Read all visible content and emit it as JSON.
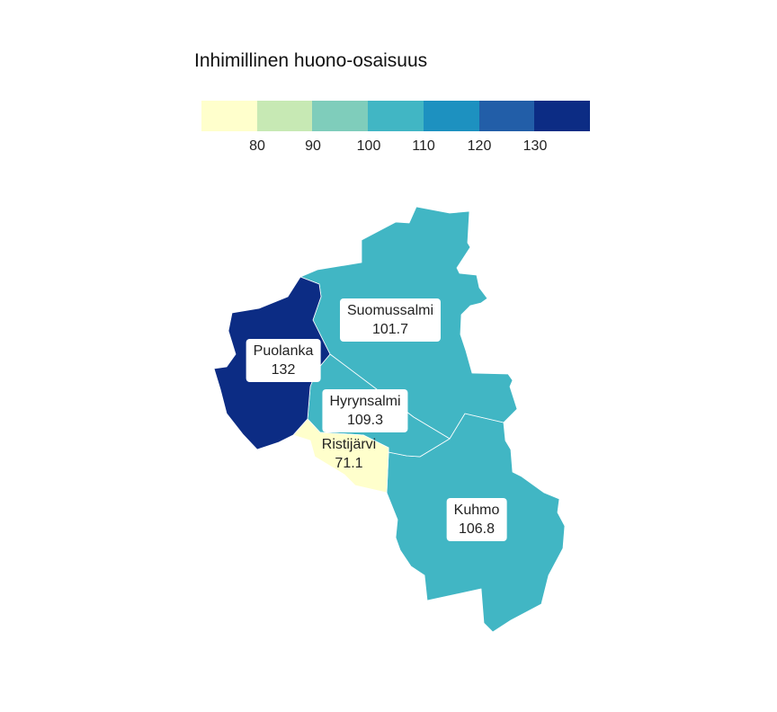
{
  "legend": {
    "title": "Inhimillinen huono-osaisuus",
    "colors": [
      "#ffffcc",
      "#c7e9b4",
      "#7fcdbb",
      "#41b6c4",
      "#1d91c0",
      "#225ea8",
      "#0c2c84"
    ],
    "breaks": [
      70,
      80,
      90,
      100,
      110,
      120,
      130,
      140
    ],
    "ticks": [
      "80",
      "90",
      "100",
      "110",
      "120",
      "130"
    ]
  },
  "regions": [
    {
      "name": "Suomussalmi",
      "value": "101.7",
      "color": "#41b6c4"
    },
    {
      "name": "Puolanka",
      "value": "132",
      "color": "#0c2c84"
    },
    {
      "name": "Hyrynsalmi",
      "value": "109.3",
      "color": "#41b6c4"
    },
    {
      "name": "Ristijärvi",
      "value": "71.1",
      "color": "#ffffcc"
    },
    {
      "name": "Kuhmo",
      "value": "106.8",
      "color": "#41b6c4"
    }
  ]
}
